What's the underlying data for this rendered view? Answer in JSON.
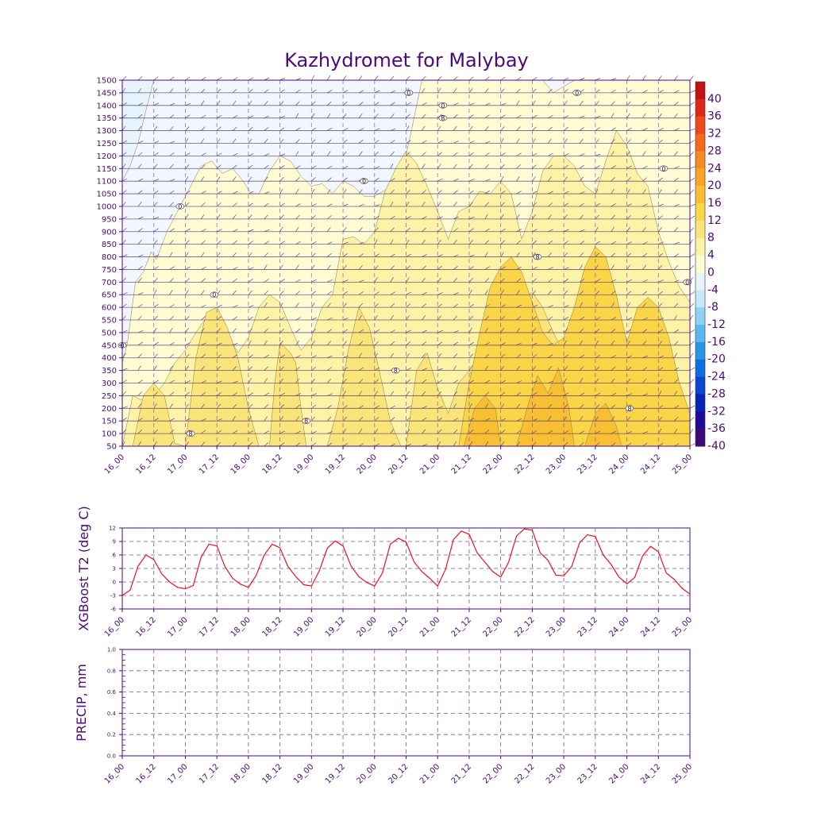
{
  "title": "Kazhydromet for Malybay",
  "colors": {
    "axis": "#4b0a78",
    "t2_line": "#e8141e",
    "gridline": "#7a4fb0"
  },
  "time_ticks": [
    "16_00",
    "16_12",
    "17_00",
    "17_12",
    "18_00",
    "18_12",
    "19_00",
    "19_12",
    "20_00",
    "20_12",
    "21_00",
    "21_12",
    "22_00",
    "22_12",
    "23_00",
    "23_12",
    "24_00",
    "24_12",
    "25_00"
  ],
  "chart_data": [
    {
      "type": "heatmap",
      "title": "Kazhydromet for Malybay",
      "xlabel": "",
      "ylabel": "",
      "y_ticks": [
        50,
        100,
        150,
        200,
        250,
        300,
        350,
        400,
        450,
        500,
        550,
        600,
        650,
        700,
        750,
        800,
        850,
        900,
        950,
        1000,
        1050,
        1100,
        1150,
        1200,
        1250,
        1300,
        1350,
        1400,
        1450,
        1500
      ],
      "ylim": [
        50,
        1500
      ],
      "colorbar_labels": [
        "40",
        "36",
        "32",
        "28",
        "24",
        "20",
        "16",
        "12",
        "8",
        "4",
        "0",
        "-4",
        "-8",
        "-12",
        "-16",
        "-20",
        "-24",
        "-28",
        "-32",
        "-36",
        "-40"
      ],
      "colorbar_colors": [
        "#c41010",
        "#e0261a",
        "#ee4a1c",
        "#f56a1e",
        "#f78a22",
        "#f8a52a",
        "#f9bf33",
        "#fad548",
        "#fbe57a",
        "#fdf3a6",
        "#fffbd2",
        "#e8f4fc",
        "#c6e8f8",
        "#8fd2f4",
        "#5bb8ee",
        "#2a96e6",
        "#0f6ee0",
        "#0b45d0",
        "#0a22b8",
        "#220a98",
        "#3d0878"
      ],
      "contour_labels": [
        "0",
        "0",
        "0",
        "0",
        "0",
        "0",
        "0",
        "0",
        "8",
        "8",
        "8",
        "8",
        "8",
        "8",
        "0"
      ],
      "contour_label_values": [
        0,
        0,
        0,
        0,
        0,
        0,
        0,
        0,
        8,
        8,
        8,
        8,
        8,
        8,
        0
      ]
    },
    {
      "type": "line",
      "title": "",
      "ylabel": "XGBoost T2 (deg C)",
      "ylim": [
        -6,
        12
      ],
      "y_ticks": [
        "12",
        "9",
        "6",
        "3",
        "0",
        "-3",
        "-6"
      ],
      "series": [
        {
          "name": "XGBoost T2",
          "x": [
            0,
            3,
            6,
            9,
            12,
            15,
            18,
            21,
            24,
            27,
            30,
            33,
            36,
            39,
            42,
            45,
            48,
            51,
            54,
            57,
            60,
            63,
            66,
            69,
            72,
            75,
            78,
            81,
            84,
            87,
            90,
            93,
            96,
            99,
            102,
            105,
            108,
            111,
            114,
            117,
            120,
            123,
            126,
            129,
            132,
            135,
            138,
            141,
            144,
            147,
            150,
            153,
            156,
            159,
            162,
            165,
            168,
            171,
            174,
            177,
            180,
            183,
            186,
            189,
            192,
            195,
            198,
            201,
            204,
            207,
            210,
            213,
            216
          ],
          "values": [
            -3,
            -1.8,
            3.5,
            6,
            5,
            1.8,
            0,
            -1.2,
            -1.5,
            -0.8,
            5.5,
            8.4,
            8,
            3.5,
            0.8,
            -0.5,
            -1.2,
            1.5,
            6,
            8.4,
            7.6,
            3.5,
            1.2,
            -0.6,
            -0.9,
            2.5,
            7.5,
            9.1,
            8,
            3.6,
            1.2,
            -0.1,
            -0.9,
            2,
            8.4,
            9.7,
            8.9,
            4.5,
            2.3,
            0.8,
            -0.9,
            2.8,
            9.4,
            11.3,
            10.6,
            6.5,
            4.4,
            2.3,
            1.1,
            4.4,
            10.2,
            11.8,
            11.5,
            6.5,
            4.8,
            1.5,
            1.4,
            3.4,
            8.7,
            10.5,
            10.1,
            6,
            3.9,
            1.1,
            -0.4,
            1,
            5.8,
            7.9,
            6.7,
            2,
            0.6,
            -1.4,
            -2.7
          ]
        }
      ]
    },
    {
      "type": "line",
      "title": "",
      "ylabel": "PRECIP, mm",
      "ylim": [
        0,
        1
      ],
      "y_ticks": [
        "1.0",
        "0.8",
        "0.6",
        "0.4",
        "0.2",
        "0.0"
      ],
      "series": []
    }
  ]
}
